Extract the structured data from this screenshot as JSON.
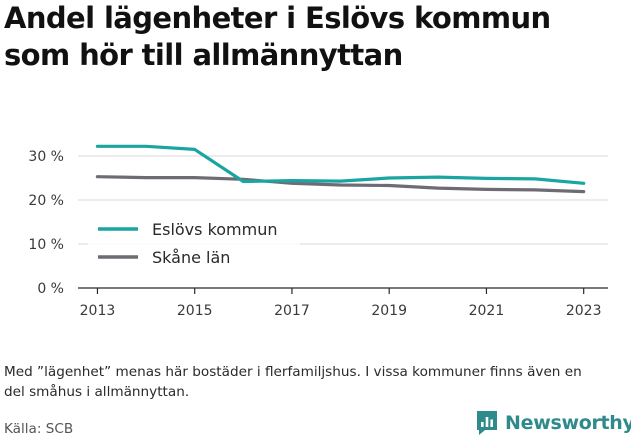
{
  "title": "Andel lägenheter i Eslövs kommun som hör till allmännyttan",
  "note": "Med ”lägenhet” menas här bostäder i flerfamiljshus. I vissa kommuner finns även en del småhus i allmännyttan.",
  "source": "Källa: SCB",
  "brand": {
    "name": "Newsworthy",
    "icon": "newsworthy-logo-icon",
    "color": "#2f8a8c"
  },
  "chart_data": {
    "type": "line",
    "title": "Andel lägenheter i Eslövs kommun som hör till allmännyttan",
    "xlabel": "",
    "ylabel": "",
    "x": [
      2013,
      2014,
      2015,
      2016,
      2017,
      2018,
      2019,
      2020,
      2021,
      2022,
      2023
    ],
    "xticks": [
      "2013",
      "2015",
      "2017",
      "2019",
      "2021",
      "2023"
    ],
    "yticks": [
      "0 %",
      "10 %",
      "20 %",
      "30 %"
    ],
    "ylim": [
      0,
      30
    ],
    "xlim": [
      2012.6,
      2023.5
    ],
    "grid": "horizontal",
    "legend_placement": "bottom-left",
    "series": [
      {
        "name": "Eslövs kommun",
        "color": "#1aa5a0",
        "values": [
          32.2,
          32.2,
          31.5,
          24.2,
          24.4,
          24.3,
          25.0,
          25.2,
          24.9,
          24.8,
          23.8
        ]
      },
      {
        "name": "Skåne län",
        "color": "#6d6c73",
        "values": [
          25.3,
          25.1,
          25.1,
          24.7,
          23.8,
          23.4,
          23.3,
          22.7,
          22.4,
          22.3,
          21.9
        ]
      }
    ]
  }
}
